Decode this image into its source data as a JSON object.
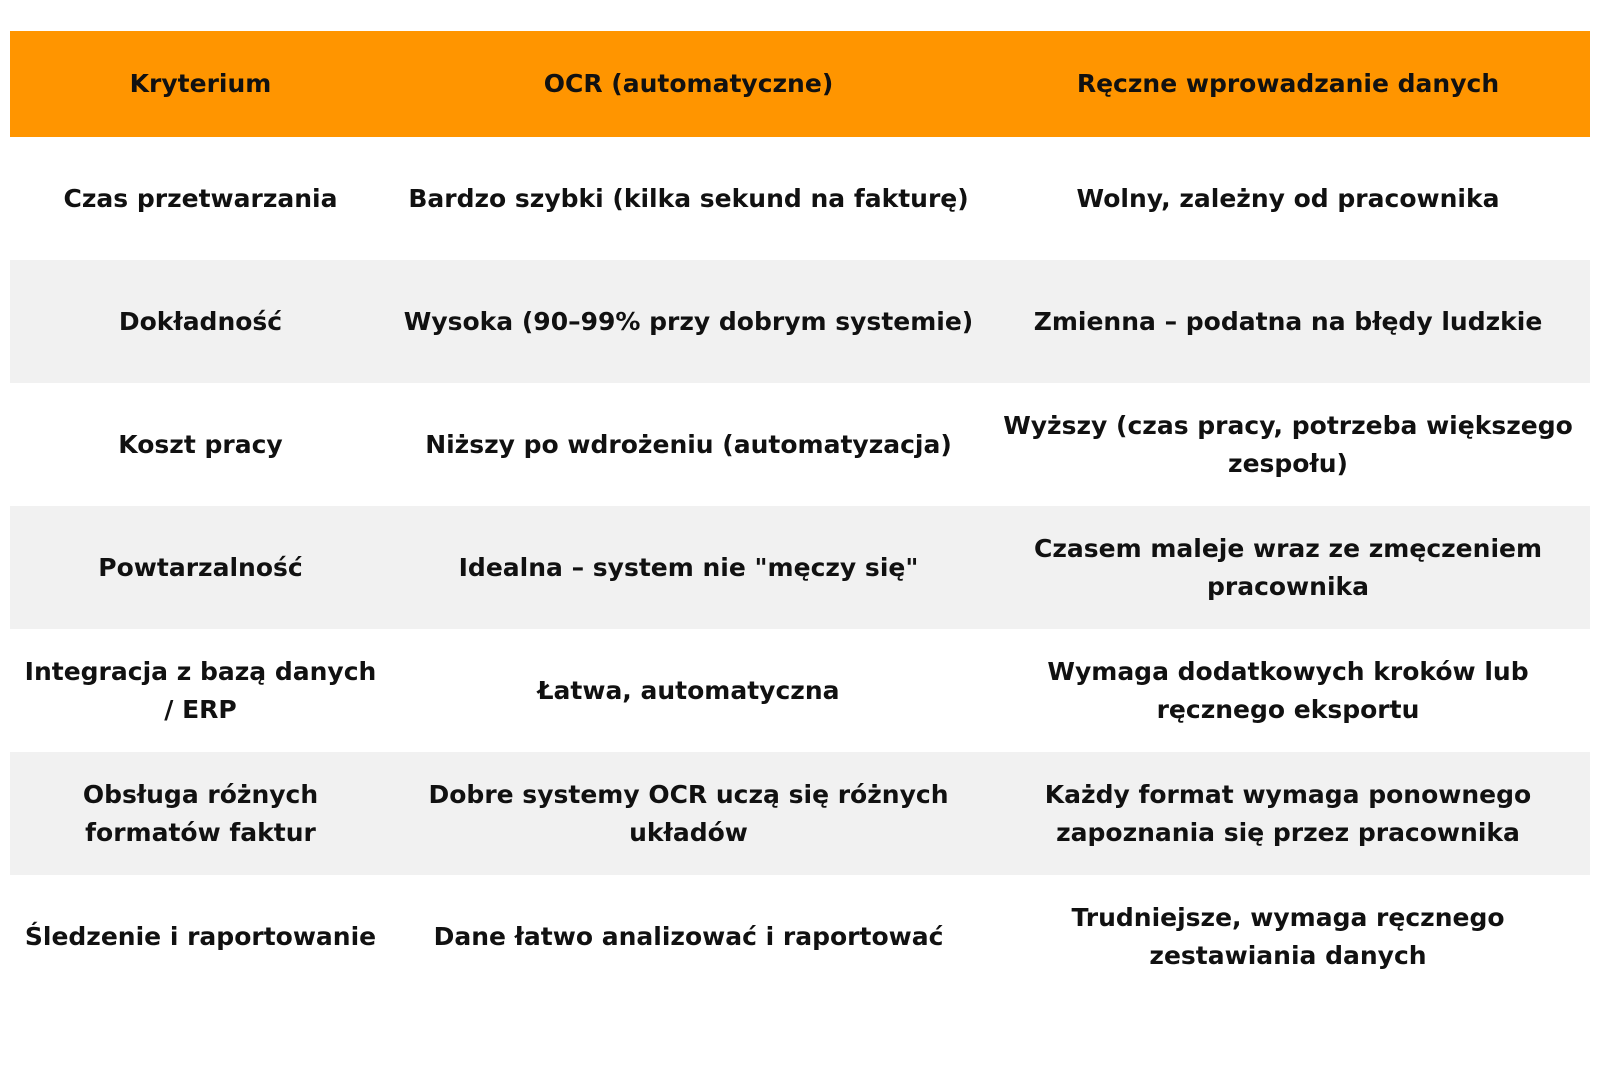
{
  "colors": {
    "header_background": "#ff9500",
    "shaded_row_background": "#f1f1f1",
    "text": "#111111"
  },
  "table": {
    "headers": [
      "Kryterium",
      "OCR (automatyczne)",
      "Ręczne wprowadzanie danych"
    ],
    "rows": [
      [
        "Czas przetwarzania",
        "Bardzo szybki (kilka sekund na fakturę)",
        "Wolny, zależny od pracownika"
      ],
      [
        "Dokładność",
        "Wysoka (90–99% przy dobrym systemie)",
        "Zmienna – podatna na błędy ludzkie"
      ],
      [
        "Koszt pracy",
        "Niższy po wdrożeniu (automatyzacja)",
        "Wyższy (czas pracy, potrzeba większego zespołu)"
      ],
      [
        "Powtarzalność",
        "Idealna – system nie \"męczy się\"",
        "Czasem maleje wraz ze zmęczeniem pracownika"
      ],
      [
        "Integracja z bazą danych / ERP",
        "Łatwa, automatyczna",
        "Wymaga dodatkowych kroków lub ręcznego eksportu"
      ],
      [
        "Obsługa różnych formatów faktur",
        "Dobre systemy OCR uczą się różnych układów",
        "Każdy format wymaga ponownego zapoznania się przez pracownika"
      ],
      [
        "Śledzenie i raportowanie",
        "Dane łatwo analizować i raportować",
        "Trudniejsze, wymaga ręcznego zestawiania danych"
      ]
    ]
  }
}
